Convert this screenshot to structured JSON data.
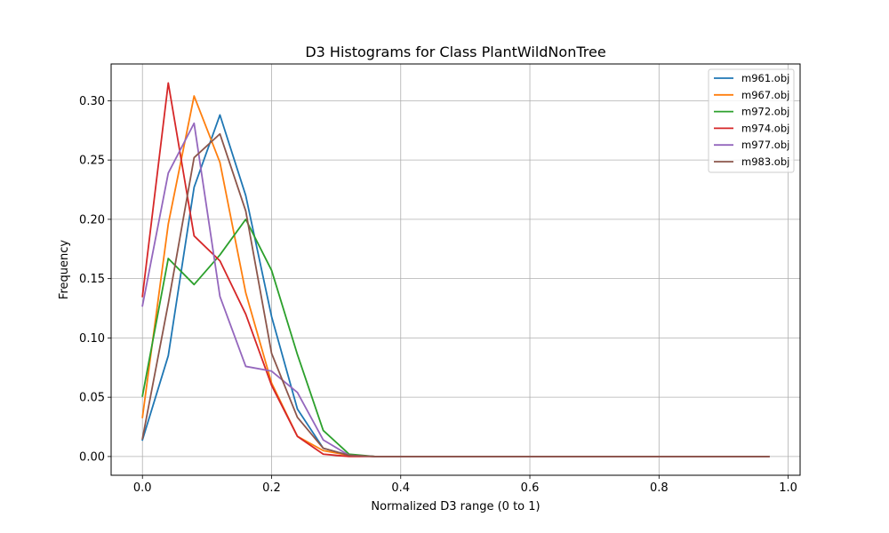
{
  "chart_data": {
    "type": "line",
    "title": "D3 Histograms for Class PlantWildNonTree",
    "xlabel": "Normalized D3 range (0 to 1)",
    "ylabel": "Frequency",
    "xlim": [
      -0.0485,
      1.0185
    ],
    "ylim": [
      -0.0158,
      0.331
    ],
    "xticks": [
      0.0,
      0.2,
      0.4,
      0.6,
      0.8,
      1.0
    ],
    "xtick_labels": [
      "0.0",
      "0.2",
      "0.4",
      "0.6",
      "0.8",
      "1.0"
    ],
    "yticks": [
      0.0,
      0.05,
      0.1,
      0.15,
      0.2,
      0.25,
      0.3
    ],
    "ytick_labels": [
      "0.00",
      "0.05",
      "0.10",
      "0.15",
      "0.20",
      "0.25",
      "0.30"
    ],
    "grid": true,
    "legend_position": "top-right",
    "x": [
      0.0,
      0.04,
      0.08,
      0.12,
      0.16,
      0.2,
      0.24,
      0.28,
      0.32,
      0.36,
      0.4,
      0.44,
      0.48,
      0.52,
      0.56,
      0.6,
      0.64,
      0.68,
      0.72,
      0.76,
      0.8,
      0.84,
      0.88,
      0.92,
      0.97
    ],
    "series": [
      {
        "name": "m961.obj",
        "color": "#1f77b4",
        "values": [
          0.014,
          0.085,
          0.227,
          0.288,
          0.22,
          0.118,
          0.04,
          0.007,
          0.001,
          0,
          0,
          0,
          0,
          0,
          0,
          0,
          0,
          0,
          0,
          0,
          0,
          0,
          0,
          0,
          0
        ]
      },
      {
        "name": "m967.obj",
        "color": "#ff7f0e",
        "values": [
          0.033,
          0.196,
          0.304,
          0.248,
          0.138,
          0.062,
          0.017,
          0.005,
          0.001,
          0,
          0,
          0,
          0,
          0,
          0,
          0,
          0,
          0,
          0,
          0,
          0,
          0,
          0,
          0,
          0
        ]
      },
      {
        "name": "m972.obj",
        "color": "#2ca02c",
        "values": [
          0.051,
          0.167,
          0.145,
          0.17,
          0.2,
          0.157,
          0.086,
          0.022,
          0.002,
          0,
          0,
          0,
          0,
          0,
          0,
          0,
          0,
          0,
          0,
          0,
          0,
          0,
          0,
          0,
          0
        ]
      },
      {
        "name": "m974.obj",
        "color": "#d62728",
        "values": [
          0.135,
          0.315,
          0.186,
          0.165,
          0.12,
          0.06,
          0.017,
          0.002,
          0.0,
          0,
          0,
          0,
          0,
          0,
          0,
          0,
          0,
          0,
          0,
          0,
          0,
          0,
          0,
          0,
          0
        ]
      },
      {
        "name": "m977.obj",
        "color": "#9467bd",
        "values": [
          0.127,
          0.239,
          0.281,
          0.135,
          0.076,
          0.072,
          0.054,
          0.014,
          0.001,
          0,
          0,
          0,
          0,
          0,
          0,
          0,
          0,
          0,
          0,
          0,
          0,
          0,
          0,
          0,
          0
        ]
      },
      {
        "name": "m983.obj",
        "color": "#8c564b",
        "values": [
          0.015,
          0.129,
          0.252,
          0.272,
          0.207,
          0.087,
          0.033,
          0.007,
          0.001,
          0,
          0,
          0,
          0,
          0,
          0,
          0,
          0,
          0,
          0,
          0,
          0,
          0,
          0,
          0,
          0
        ]
      }
    ]
  }
}
